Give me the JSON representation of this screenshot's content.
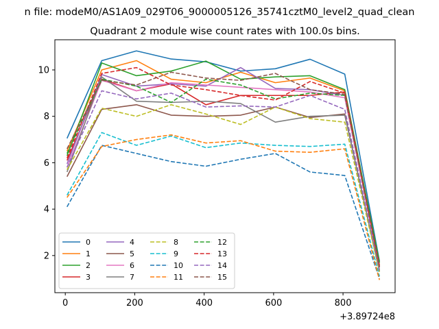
{
  "chart_data": {
    "type": "line",
    "suptitle": "n file: modeM0/AS1A09_029T06_9000005126_35741cztM0_level2_quad_clean",
    "title": "Quadrant 2 module wise count rates with 100.0s bins.",
    "xlabel": "",
    "ylabel": "",
    "x_offset_label": "+3.89724e8",
    "x": [
      5,
      105,
      205,
      305,
      405,
      505,
      605,
      705,
      805,
      905
    ],
    "xlim": [
      -30,
      950
    ],
    "ylim": [
      0.4,
      11.3
    ],
    "xticks": [
      0,
      200,
      400,
      600,
      800
    ],
    "yticks": [
      2,
      4,
      6,
      8,
      10
    ],
    "grid": false,
    "legend_placement": "lower-left",
    "series": [
      {
        "name": "0",
        "color": "#1f77b4",
        "dash": "solid",
        "values": [
          7.05,
          10.4,
          10.82,
          10.47,
          10.35,
          9.95,
          10.05,
          10.46,
          9.82,
          1.75
        ]
      },
      {
        "name": "1",
        "color": "#ff7f0e",
        "dash": "solid",
        "values": [
          6.5,
          10.0,
          10.4,
          9.6,
          9.45,
          9.9,
          9.45,
          9.65,
          9.1,
          1.6
        ]
      },
      {
        "name": "2",
        "color": "#2ca02c",
        "dash": "solid",
        "values": [
          6.3,
          10.3,
          9.75,
          9.95,
          10.38,
          9.6,
          9.7,
          9.75,
          9.15,
          1.7
        ]
      },
      {
        "name": "3",
        "color": "#d62728",
        "dash": "solid",
        "values": [
          6.1,
          9.6,
          9.1,
          9.4,
          8.5,
          8.9,
          8.9,
          8.9,
          9.05,
          1.5
        ]
      },
      {
        "name": "4",
        "color": "#9467bd",
        "dash": "solid",
        "values": [
          5.95,
          9.8,
          9.3,
          9.4,
          9.3,
          10.1,
          9.2,
          9.15,
          8.9,
          1.5
        ]
      },
      {
        "name": "5",
        "color": "#8c564b",
        "dash": "solid",
        "values": [
          5.4,
          8.3,
          8.5,
          8.05,
          8.0,
          8.05,
          8.4,
          7.95,
          8.1,
          1.3
        ]
      },
      {
        "name": "6",
        "color": "#e377c2",
        "dash": "solid",
        "values": [
          5.8,
          9.55,
          9.1,
          9.45,
          9.35,
          9.25,
          9.15,
          9.05,
          8.8,
          1.5
        ]
      },
      {
        "name": "7",
        "color": "#7f7f7f",
        "dash": "solid",
        "values": [
          5.6,
          9.7,
          8.65,
          8.6,
          8.65,
          8.55,
          7.75,
          8.0,
          8.05,
          1.35
        ]
      },
      {
        "name": "8",
        "color": "#bcbd22",
        "dash": "dashed",
        "values": [
          5.7,
          8.35,
          8.0,
          8.5,
          8.1,
          7.65,
          8.4,
          7.9,
          7.75,
          1.3
        ]
      },
      {
        "name": "9",
        "color": "#17becf",
        "dash": "dashed",
        "values": [
          4.6,
          7.3,
          6.75,
          7.15,
          6.65,
          6.85,
          6.75,
          6.7,
          6.8,
          1.1
        ]
      },
      {
        "name": "10",
        "color": "#1f77b4",
        "dash": "dashed",
        "values": [
          4.1,
          6.75,
          6.4,
          6.05,
          5.85,
          6.15,
          6.4,
          5.6,
          5.45,
          1.0
        ]
      },
      {
        "name": "11",
        "color": "#ff7f0e",
        "dash": "dashed",
        "values": [
          4.5,
          6.7,
          7.0,
          7.2,
          6.85,
          6.95,
          6.5,
          6.45,
          6.6,
          0.95
        ]
      },
      {
        "name": "12",
        "color": "#2ca02c",
        "dash": "dashed",
        "values": [
          6.4,
          9.6,
          9.3,
          8.6,
          9.6,
          9.35,
          8.75,
          9.0,
          8.9,
          1.6
        ]
      },
      {
        "name": "13",
        "color": "#d62728",
        "dash": "dashed",
        "values": [
          6.2,
          9.85,
          10.1,
          9.35,
          9.15,
          8.9,
          8.7,
          9.5,
          9.0,
          1.55
        ]
      },
      {
        "name": "14",
        "color": "#9467bd",
        "dash": "dashed",
        "values": [
          5.8,
          9.1,
          8.75,
          9.0,
          8.4,
          8.45,
          8.4,
          8.9,
          8.3,
          1.4
        ]
      },
      {
        "name": "15",
        "color": "#8c564b",
        "dash": "dashed",
        "values": [
          6.6,
          9.55,
          9.35,
          9.9,
          9.65,
          9.55,
          9.85,
          9.15,
          8.95,
          1.5
        ]
      }
    ]
  }
}
